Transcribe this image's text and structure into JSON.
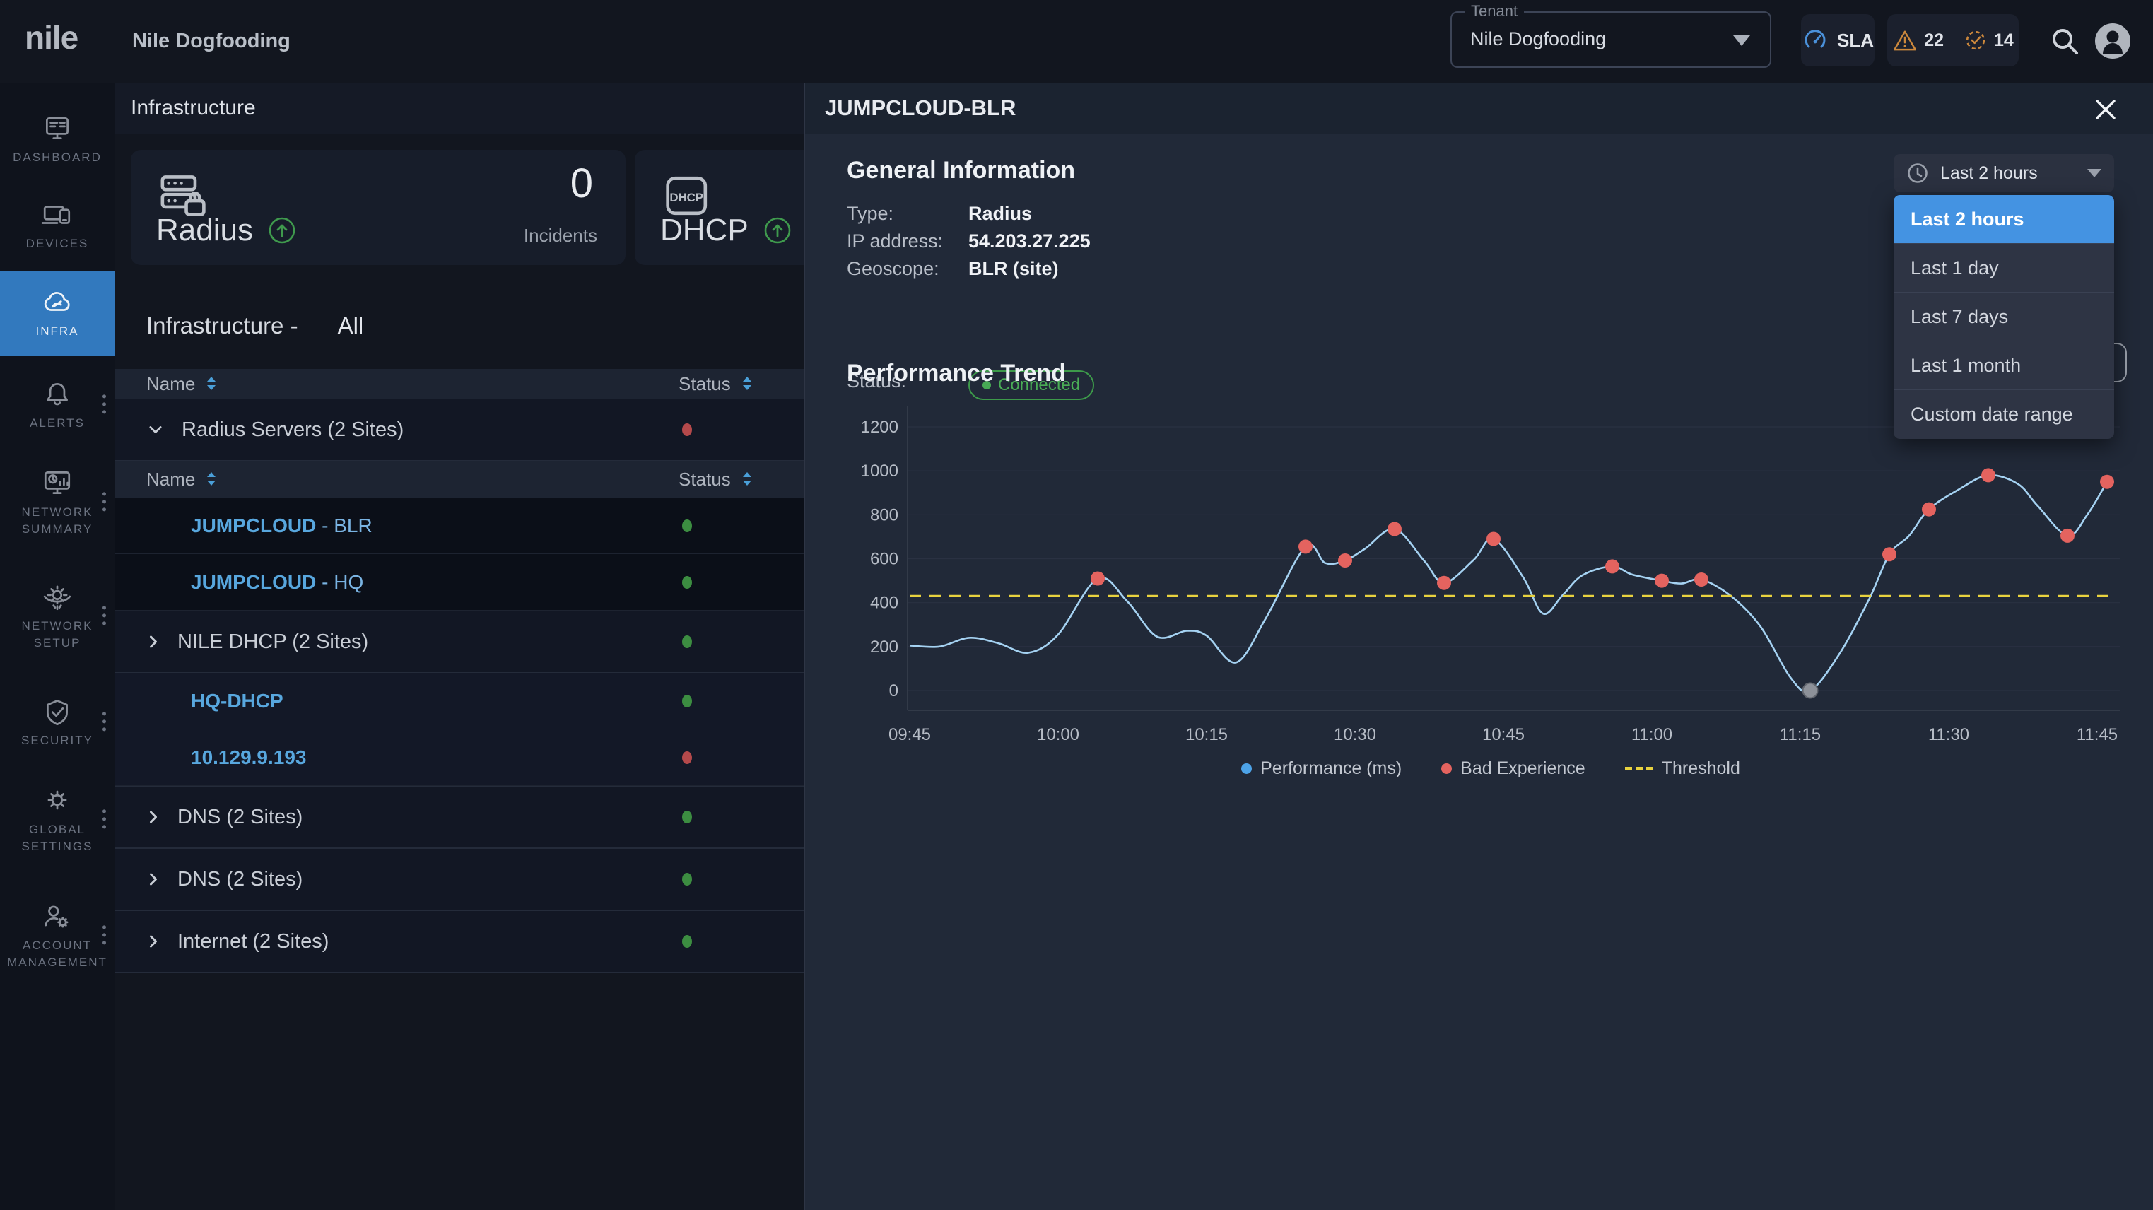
{
  "colors": {
    "accent": "#4493e2",
    "active_nav": "#3279be",
    "status_green": "#3c8d41",
    "status_red": "#b4494b",
    "link_blue": "#58a7de",
    "badge_orange": "#cc883c",
    "chart_line": "#a5d2f2",
    "chart_fill": "#3b86cc",
    "threshold_yellow": "#e8d23f",
    "bad_dot_red": "#e4635f",
    "zero_dot_gray": "#8d9199"
  },
  "topbar": {
    "logo": "nile",
    "page_title": "Nile Dogfooding",
    "tenant": {
      "label": "Tenant",
      "value": "Nile Dogfooding"
    },
    "sla_label": "SLA",
    "alerts_count": "22",
    "assignments_count": "14"
  },
  "sidebar": {
    "items": [
      {
        "id": "dashboard",
        "label": "DASHBOARD",
        "icon": "dashboard-icon",
        "active": false,
        "menu": false
      },
      {
        "id": "devices",
        "label": "DEVICES",
        "icon": "devices-icon",
        "active": false,
        "menu": false
      },
      {
        "id": "infra",
        "label": "INFRA",
        "icon": "infra-icon",
        "active": true,
        "menu": false
      },
      {
        "id": "alerts",
        "label": "ALERTS",
        "icon": "alerts-icon",
        "active": false,
        "menu": true
      },
      {
        "id": "network-summary",
        "label": "NETWORK SUMMARY",
        "icon": "network-summary-icon",
        "active": false,
        "menu": true
      },
      {
        "id": "network-setup",
        "label": "NETWORK SETUP",
        "icon": "network-setup-icon",
        "active": false,
        "menu": true
      },
      {
        "id": "security",
        "label": "SECURITY",
        "icon": "security-icon",
        "active": false,
        "menu": true
      },
      {
        "id": "global-settings",
        "label": "GLOBAL SETTINGS",
        "icon": "global-settings-icon",
        "active": false,
        "menu": true
      },
      {
        "id": "account-management",
        "label": "ACCOUNT MANAGEMENT",
        "icon": "account-management-icon",
        "active": false,
        "menu": true
      }
    ]
  },
  "main": {
    "header": "Infrastructure",
    "cards": [
      {
        "title": "Radius",
        "icon": "radius-server-icon",
        "trend_icon": "trend-up-icon",
        "metric": "0",
        "metric_label": "Incidents"
      },
      {
        "title": "DHCP",
        "icon": "dhcp-icon",
        "trend_icon": "trend-up-icon"
      }
    ],
    "section_title": "Infrastructure -",
    "section_filter": "All",
    "table": {
      "col_name": "Name",
      "col_status": "Status",
      "rows": [
        {
          "kind": "header"
        },
        {
          "kind": "group",
          "name": "Radius Servers (2 Sites)",
          "status": "red",
          "expanded": true
        },
        {
          "kind": "header"
        },
        {
          "kind": "leaf",
          "link": "JUMPCLOUD",
          "suffix": " - BLR",
          "status": "green",
          "dark": true,
          "selected": true
        },
        {
          "kind": "leaf",
          "link": "JUMPCLOUD",
          "suffix": " - HQ",
          "status": "green",
          "dark": true,
          "selected": false
        },
        {
          "kind": "group",
          "name": "NILE DHCP (2 Sites)",
          "status": "green",
          "expanded": false
        },
        {
          "kind": "leaf",
          "link": "HQ-DHCP",
          "suffix": "",
          "status": "green",
          "dark": false,
          "selected": false
        },
        {
          "kind": "leaf",
          "link": "10.129.9.193",
          "suffix": "",
          "status": "red",
          "dark": false,
          "selected": false
        },
        {
          "kind": "group",
          "name": "DNS (2 Sites)",
          "status": "green",
          "expanded": false
        },
        {
          "kind": "group",
          "name": "DNS (2 Sites)",
          "status": "green",
          "expanded": false
        },
        {
          "kind": "group",
          "name": "Internet (2 Sites)",
          "status": "green",
          "expanded": false
        }
      ]
    }
  },
  "panel": {
    "title": "JUMPCLOUD-BLR",
    "general": {
      "heading": "General Information",
      "rows": [
        {
          "label": "Type:",
          "value": "Radius"
        },
        {
          "label": "IP address:",
          "value": "54.203.27.225"
        },
        {
          "label": "Geoscope:",
          "value": "BLR (site)"
        }
      ],
      "status_label": "Status:",
      "status_value": "Connected"
    },
    "trend": {
      "heading": "Performance Trend",
      "range_value": "Last 2 hours",
      "menu_items": [
        {
          "label": "Last 2 hours",
          "selected": true
        },
        {
          "label": "Last 1 day",
          "selected": false
        },
        {
          "label": "Last 7 days",
          "selected": false
        },
        {
          "label": "Last 1 month",
          "selected": false
        },
        {
          "label": "Custom date range",
          "selected": false
        }
      ]
    }
  },
  "chart_data": {
    "type": "area",
    "title": "Performance Trend",
    "xlabel": "",
    "ylabel": "",
    "x_ticks": [
      "09:45",
      "10:00",
      "10:15",
      "10:30",
      "10:45",
      "11:00",
      "11:15",
      "11:30",
      "11:45"
    ],
    "y_ticks": [
      0,
      200,
      400,
      600,
      800,
      1000,
      1200
    ],
    "ylim": [
      0,
      1300
    ],
    "x_range_minutes": 121,
    "grid": true,
    "threshold": 430,
    "legend": [
      {
        "label": "Performance (ms)",
        "swatch": "dot",
        "color": "#4da3e8"
      },
      {
        "label": "Bad Experience",
        "swatch": "dot",
        "color": "#e4635f"
      },
      {
        "label": "Threshold",
        "swatch": "dash",
        "color": "#e8d23f"
      }
    ],
    "series": [
      {
        "name": "Performance (ms)",
        "points": [
          {
            "t": 0,
            "v": 205
          },
          {
            "t": 3,
            "v": 200
          },
          {
            "t": 6,
            "v": 240
          },
          {
            "t": 9,
            "v": 215
          },
          {
            "t": 12,
            "v": 172
          },
          {
            "t": 15,
            "v": 255
          },
          {
            "t": 19,
            "v": 510,
            "mark": "bad"
          },
          {
            "t": 22,
            "v": 405
          },
          {
            "t": 25,
            "v": 245
          },
          {
            "t": 28,
            "v": 272
          },
          {
            "t": 30,
            "v": 250
          },
          {
            "t": 33,
            "v": 128
          },
          {
            "t": 36,
            "v": 330
          },
          {
            "t": 40,
            "v": 655,
            "mark": "bad"
          },
          {
            "t": 42,
            "v": 580
          },
          {
            "t": 44,
            "v": 592,
            "mark": "bad"
          },
          {
            "t": 46,
            "v": 645
          },
          {
            "t": 49,
            "v": 735,
            "mark": "bad"
          },
          {
            "t": 52,
            "v": 590
          },
          {
            "t": 54,
            "v": 490,
            "mark": "bad"
          },
          {
            "t": 57,
            "v": 595
          },
          {
            "t": 59,
            "v": 690,
            "mark": "bad"
          },
          {
            "t": 62,
            "v": 515
          },
          {
            "t": 64,
            "v": 350
          },
          {
            "t": 66,
            "v": 435
          },
          {
            "t": 68,
            "v": 525
          },
          {
            "t": 71,
            "v": 565,
            "mark": "bad"
          },
          {
            "t": 73,
            "v": 528
          },
          {
            "t": 76,
            "v": 500,
            "mark": "bad"
          },
          {
            "t": 78,
            "v": 487
          },
          {
            "t": 80,
            "v": 505,
            "mark": "bad"
          },
          {
            "t": 83,
            "v": 430
          },
          {
            "t": 86,
            "v": 290
          },
          {
            "t": 89,
            "v": 60
          },
          {
            "t": 91,
            "v": 0,
            "mark": "zero"
          },
          {
            "t": 94,
            "v": 170
          },
          {
            "t": 97,
            "v": 420
          },
          {
            "t": 99,
            "v": 620,
            "mark": "bad"
          },
          {
            "t": 101,
            "v": 705
          },
          {
            "t": 103,
            "v": 825,
            "mark": "bad"
          },
          {
            "t": 106,
            "v": 915
          },
          {
            "t": 109,
            "v": 980,
            "mark": "bad"
          },
          {
            "t": 112,
            "v": 940
          },
          {
            "t": 114,
            "v": 840
          },
          {
            "t": 117,
            "v": 705,
            "mark": "bad"
          },
          {
            "t": 119,
            "v": 800
          },
          {
            "t": 121,
            "v": 950,
            "mark": "bad"
          }
        ]
      }
    ]
  }
}
